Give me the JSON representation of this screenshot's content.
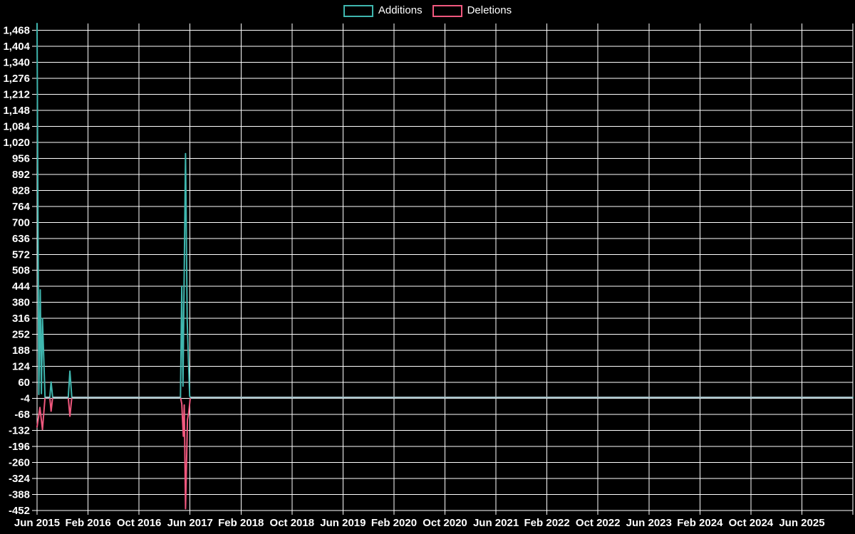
{
  "legend": {
    "items": [
      {
        "label": "Additions",
        "color": "#3fb6ae"
      },
      {
        "label": "Deletions",
        "color": "#f0587e"
      }
    ]
  },
  "colors": {
    "background": "#000000",
    "grid": "#ffffff",
    "axis_text": "#ffffff",
    "additions": "#3fb6ae",
    "deletions": "#f0587e",
    "zero_overlap_line": "#a7c4cb"
  },
  "chart_data": {
    "type": "line",
    "title": "",
    "legend_position": "top-center",
    "grid": true,
    "x_axis": {
      "unit": "months (0 = Jun 2015)",
      "tick_spacing_months": 8,
      "total_months": 128,
      "tick_labels": [
        "Jun 2015",
        "Feb 2016",
        "Oct 2016",
        "Jun 2017",
        "Feb 2018",
        "Oct 2018",
        "Jun 2019",
        "Feb 2020",
        "Oct 2020",
        "Jun 2021",
        "Feb 2022",
        "Oct 2022",
        "Jun 2023",
        "Feb 2024",
        "Oct 2024",
        "Jun 2025"
      ]
    },
    "y_axis": {
      "min": -452,
      "max": 1495,
      "tick_step": 64,
      "tick_values": [
        1468,
        1404,
        1340,
        1276,
        1212,
        1148,
        1084,
        1020,
        956,
        892,
        828,
        764,
        700,
        636,
        572,
        508,
        444,
        380,
        316,
        252,
        188,
        124,
        60,
        -4,
        -68,
        -132,
        -196,
        -260,
        -324,
        -388,
        -452
      ],
      "tick_labels": [
        "1,468",
        "1,404",
        "1,340",
        "1,276",
        "1,212",
        "1,148",
        "1,084",
        "1,020",
        "956",
        "892",
        "828",
        "764",
        "700",
        "636",
        "572",
        "508",
        "444",
        "380",
        "316",
        "252",
        "188",
        "124",
        "60",
        "-4",
        "-68",
        "-132",
        "-196",
        "-260",
        "-324",
        "-388",
        "-452"
      ]
    },
    "series": [
      {
        "name": "Additions",
        "color": "#3fb6ae",
        "points": [
          [
            0,
            1495
          ],
          [
            0.28,
            12
          ],
          [
            0.5,
            430
          ],
          [
            0.68,
            15
          ],
          [
            0.85,
            316
          ],
          [
            1.25,
            0
          ],
          [
            2.0,
            0
          ],
          [
            2.2,
            62
          ],
          [
            2.45,
            0
          ],
          [
            4.9,
            0
          ],
          [
            5.15,
            105
          ],
          [
            5.45,
            0
          ],
          [
            22.5,
            0
          ],
          [
            22.7,
            445
          ],
          [
            22.9,
            45
          ],
          [
            23.3,
            975
          ],
          [
            23.55,
            310
          ],
          [
            23.75,
            150
          ],
          [
            23.95,
            5
          ],
          [
            24.1,
            0
          ],
          [
            128,
            0
          ]
        ]
      },
      {
        "name": "Deletions",
        "color": "#f0587e",
        "points": [
          [
            0,
            -118
          ],
          [
            0.45,
            -40
          ],
          [
            0.85,
            -128
          ],
          [
            1.25,
            0
          ],
          [
            2.0,
            0
          ],
          [
            2.2,
            -55
          ],
          [
            2.45,
            0
          ],
          [
            4.9,
            0
          ],
          [
            5.15,
            -75
          ],
          [
            5.45,
            0
          ],
          [
            22.5,
            0
          ],
          [
            22.7,
            -25
          ],
          [
            22.95,
            -155
          ],
          [
            23.1,
            -30
          ],
          [
            23.3,
            -445
          ],
          [
            23.6,
            -90
          ],
          [
            23.8,
            -60
          ],
          [
            24.05,
            0
          ],
          [
            128,
            0
          ]
        ]
      }
    ]
  }
}
